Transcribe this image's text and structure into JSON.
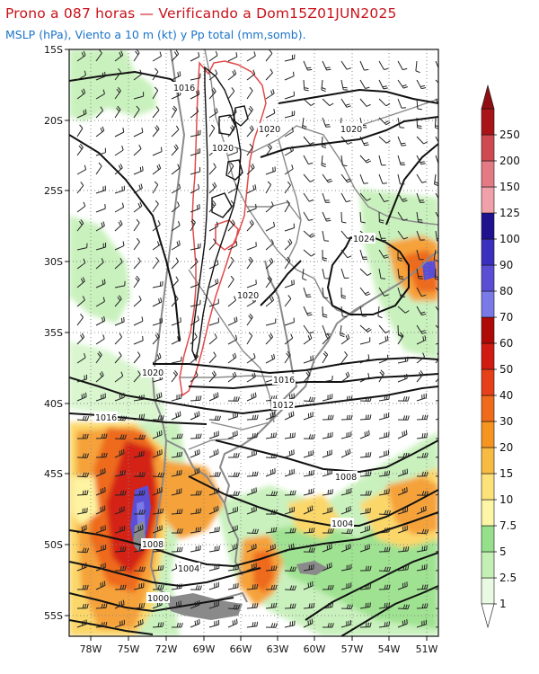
{
  "title": "Prono a 087 horas — Verificando a Dom15Z01JUN2025",
  "subtitle": "MSLP (hPa), Viento a 10 m (kt) y Pp total (mm,somb).",
  "lat_labels": [
    "15S",
    "20S",
    "25S",
    "30S",
    "35S",
    "40S",
    "45S",
    "50S",
    "55S"
  ],
  "lon_labels": [
    "78W",
    "75W",
    "72W",
    "69W",
    "66W",
    "63W",
    "60W",
    "57W",
    "54W",
    "51W"
  ],
  "isobar_labels": [
    "1016",
    "1020",
    "1020",
    "1020",
    "1024",
    "1020",
    "1016",
    "1020",
    "1016",
    "1012",
    "1008",
    "1004",
    "1008",
    "1004",
    "1000"
  ],
  "colorbar": {
    "levels": [
      "1",
      "2.5",
      "5",
      "7.5",
      "10",
      "15",
      "20",
      "30",
      "40",
      "50",
      "60",
      "70",
      "80",
      "90",
      "100",
      "125",
      "150",
      "200",
      "250"
    ],
    "colors": [
      "#e8fbe2",
      "#c4f0b6",
      "#96e08c",
      "#fdf6a6",
      "#fde27a",
      "#f8bb42",
      "#f59520",
      "#ef6a1a",
      "#e5401a",
      "#d01a12",
      "#ae0a08",
      "#7a79e8",
      "#5a4fd4",
      "#3b2fbf",
      "#1e128f",
      "#f0a0a8",
      "#e47a84",
      "#cf4a50",
      "#a81418"
    ]
  }
}
